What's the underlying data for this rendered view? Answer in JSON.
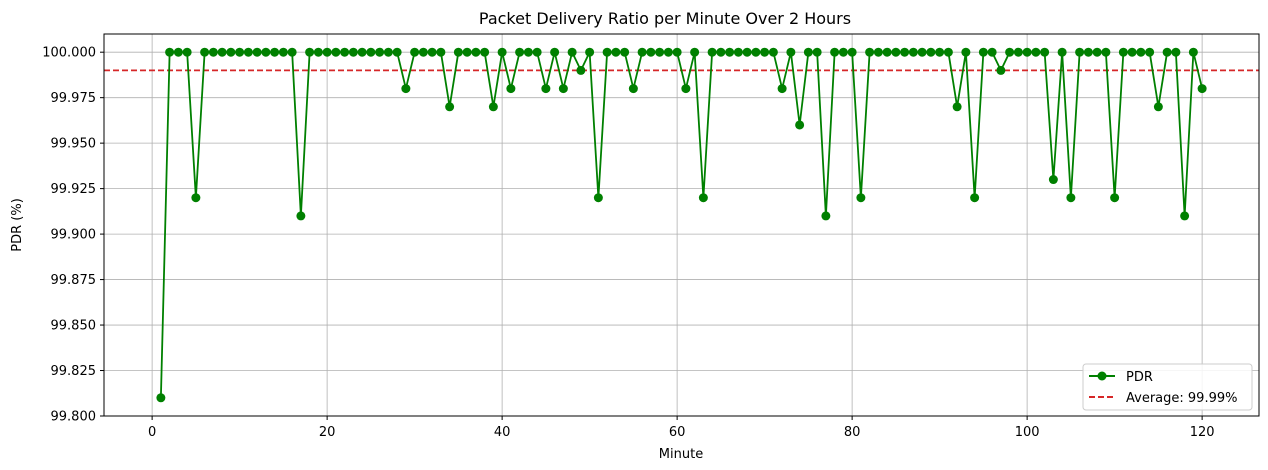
{
  "chart_data": {
    "type": "line",
    "title": "Packet Delivery Ratio per Minute Over 2 Hours",
    "xlabel": "Minute",
    "ylabel": "PDR (%)",
    "xlim": [
      -5.5,
      126.5
    ],
    "ylim": [
      99.8,
      100.01
    ],
    "xticks": [
      0,
      20,
      40,
      60,
      80,
      100,
      120
    ],
    "yticks": [
      99.8,
      99.825,
      99.85,
      99.875,
      99.9,
      99.925,
      99.95,
      99.975,
      100.0
    ],
    "ytick_labels": [
      "99.800",
      "99.825",
      "99.850",
      "99.875",
      "99.900",
      "99.925",
      "99.950",
      "99.975",
      "100.000"
    ],
    "grid": true,
    "legend_position": "lower-right",
    "series": [
      {
        "name": "PDR",
        "color": "#008000",
        "marker": "circle",
        "x": [
          1,
          2,
          3,
          4,
          5,
          6,
          7,
          8,
          9,
          10,
          11,
          12,
          13,
          14,
          15,
          16,
          17,
          18,
          19,
          20,
          21,
          22,
          23,
          24,
          25,
          26,
          27,
          28,
          29,
          30,
          31,
          32,
          33,
          34,
          35,
          36,
          37,
          38,
          39,
          40,
          41,
          42,
          43,
          44,
          45,
          46,
          47,
          48,
          49,
          50,
          51,
          52,
          53,
          54,
          55,
          56,
          57,
          58,
          59,
          60,
          61,
          62,
          63,
          64,
          65,
          66,
          67,
          68,
          69,
          70,
          71,
          72,
          73,
          74,
          75,
          76,
          77,
          78,
          79,
          80,
          81,
          82,
          83,
          84,
          85,
          86,
          87,
          88,
          89,
          90,
          91,
          92,
          93,
          94,
          95,
          96,
          97,
          98,
          99,
          100,
          101,
          102,
          103,
          104,
          105,
          106,
          107,
          108,
          109,
          110,
          111,
          112,
          113,
          114,
          115,
          116,
          117,
          118,
          119,
          120
        ],
        "y": [
          99.81,
          100,
          100,
          100,
          99.92,
          100,
          100,
          100,
          100,
          100,
          100,
          100,
          100,
          100,
          100,
          100,
          99.91,
          100,
          100,
          100,
          100,
          100,
          100,
          100,
          100,
          100,
          100,
          100,
          99.98,
          100,
          100,
          100,
          100,
          99.97,
          100,
          100,
          100,
          100,
          99.97,
          100,
          99.98,
          100,
          100,
          100,
          99.98,
          100,
          99.98,
          100,
          99.99,
          100,
          99.92,
          100,
          100,
          100,
          99.98,
          100,
          100,
          100,
          100,
          100,
          99.98,
          100,
          99.92,
          100,
          100,
          100,
          100,
          100,
          100,
          100,
          100,
          99.98,
          100,
          99.96,
          100,
          100,
          99.91,
          100,
          100,
          100,
          99.92,
          100,
          100,
          100,
          100,
          100,
          100,
          100,
          100,
          100,
          100,
          99.97,
          100,
          99.92,
          100,
          100,
          99.99,
          100,
          100,
          100,
          100,
          100,
          99.93,
          100,
          99.92,
          100,
          100,
          100,
          100,
          99.92,
          100,
          100,
          100,
          100,
          99.97,
          100,
          100,
          99.91,
          100,
          99.98
        ]
      },
      {
        "name": "Average: 99.99%",
        "color": "#d62728",
        "style": "dashed",
        "y": 99.99
      }
    ]
  }
}
